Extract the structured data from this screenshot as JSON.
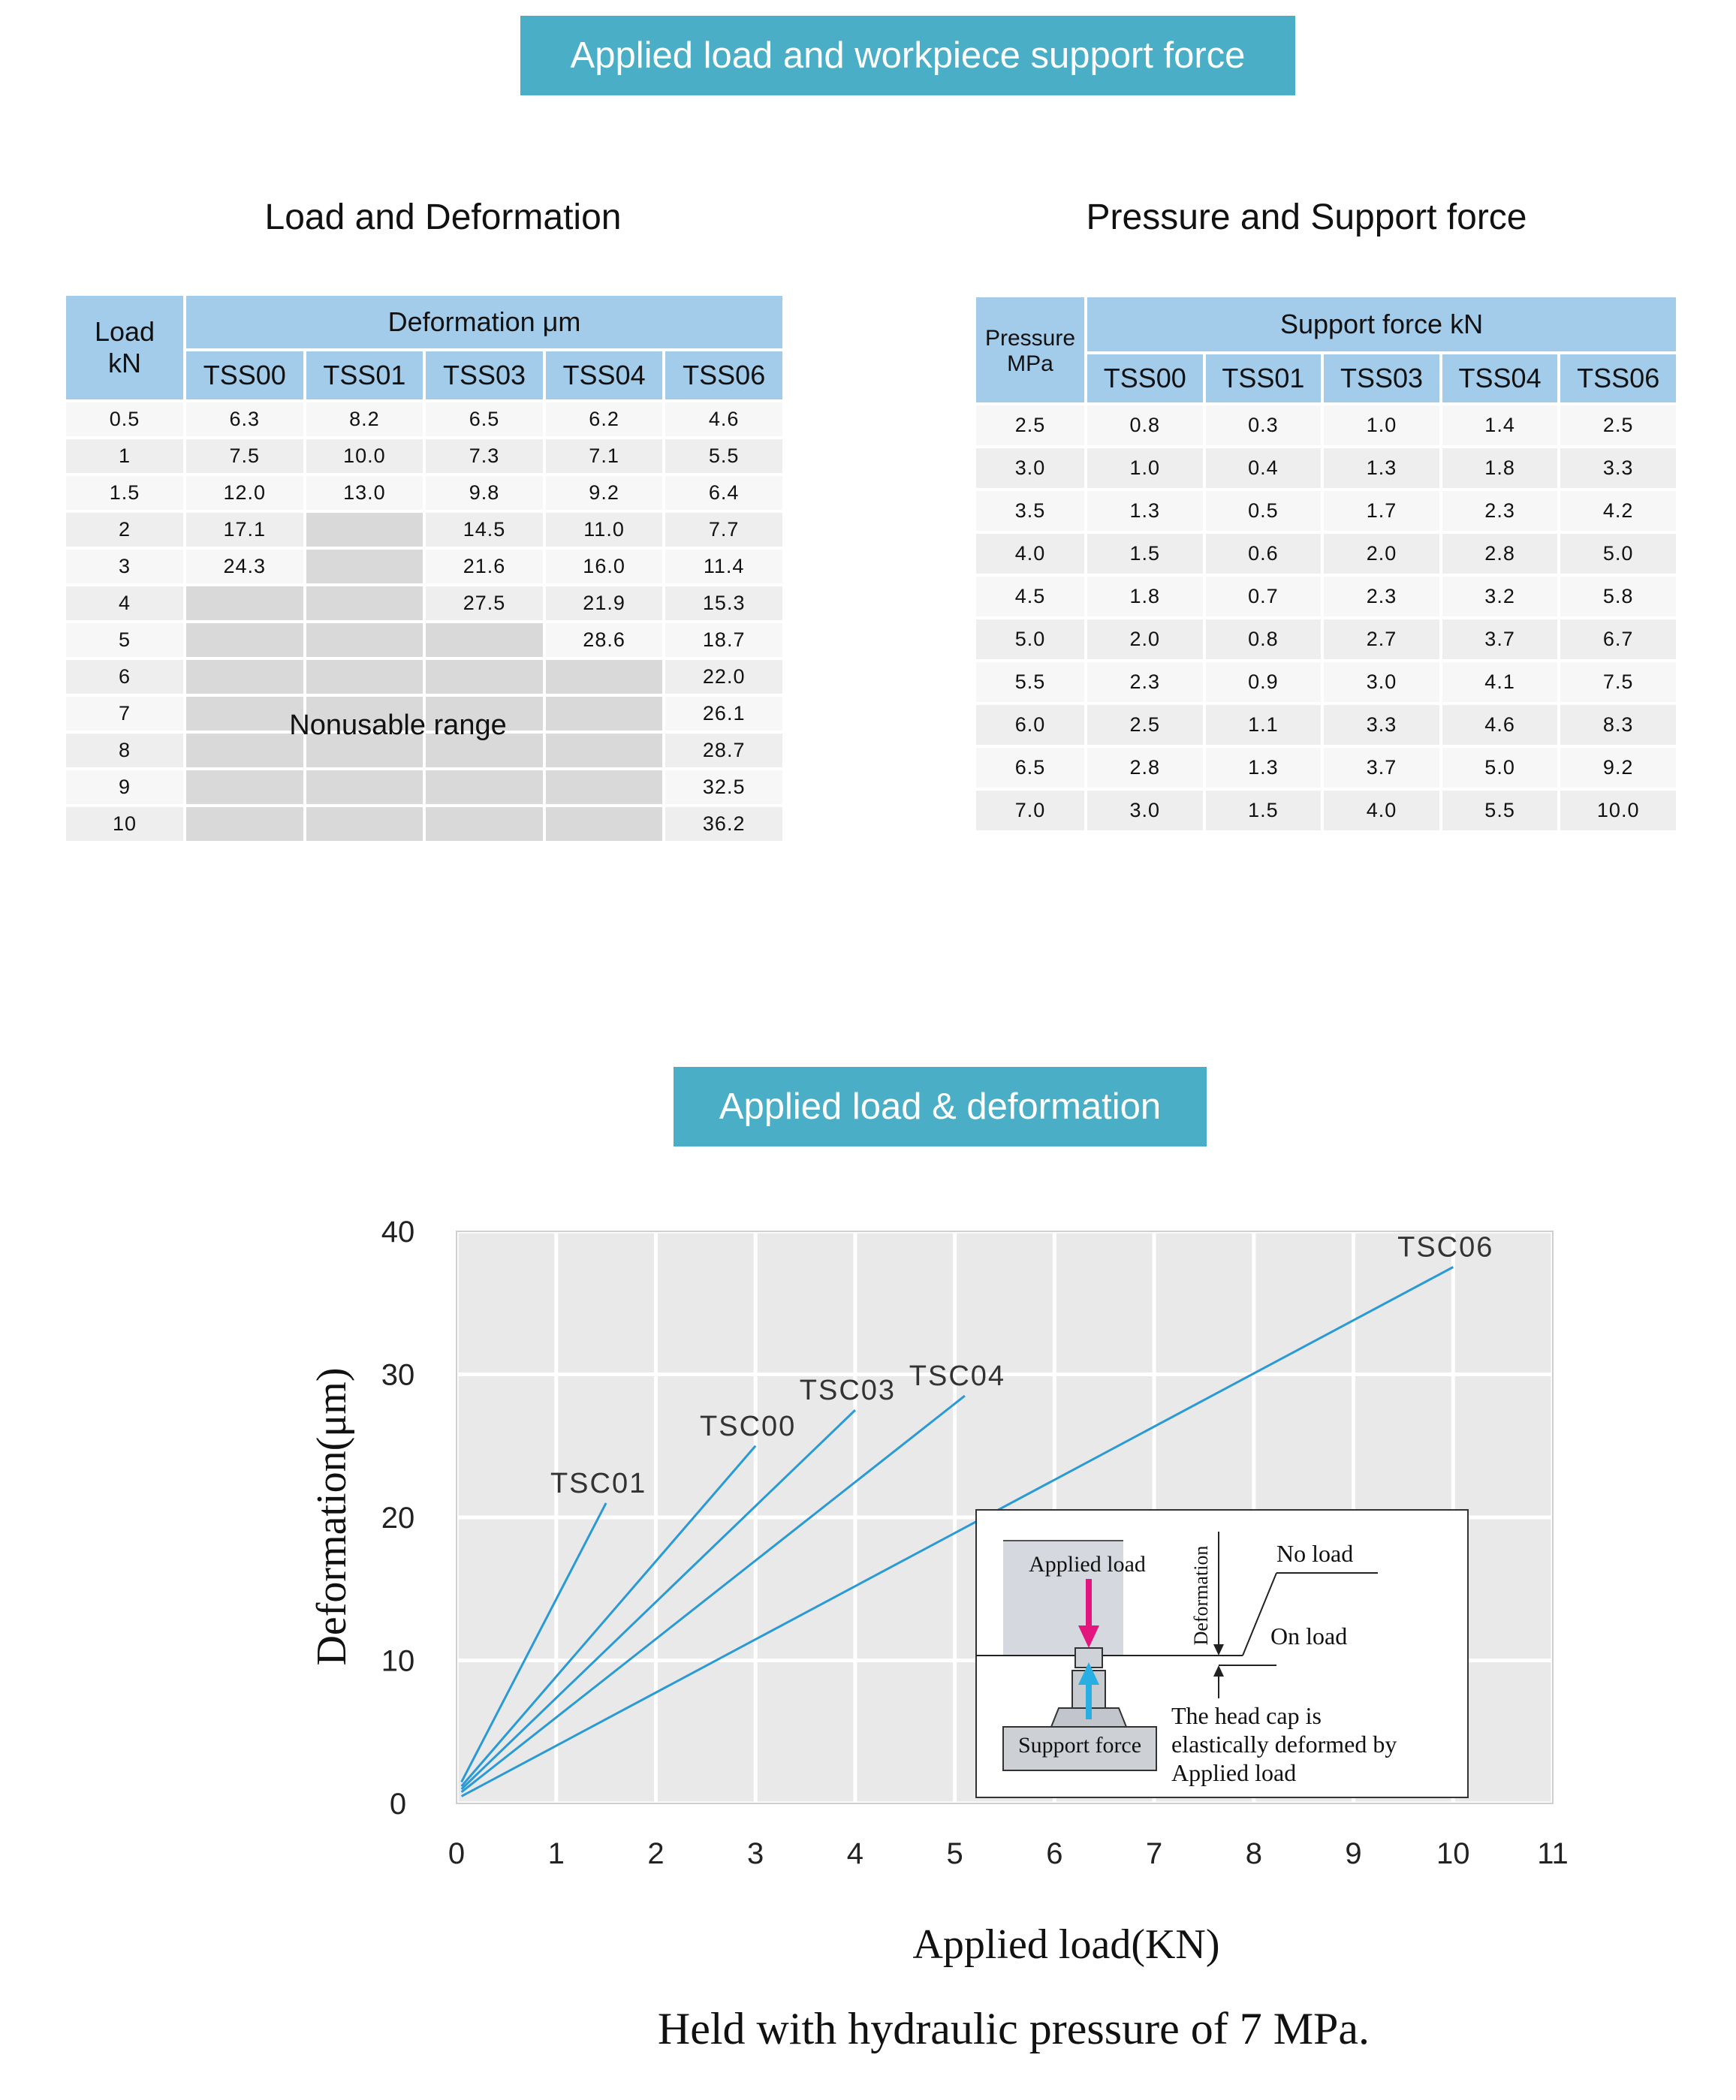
{
  "banner_top": "Applied load and workpiece support force",
  "banner_chart": "Applied load & deformation",
  "load_table": {
    "title": "Load and Deformation",
    "corner_line1": "Load",
    "corner_line2": "kN",
    "group_header": "Deformation μm",
    "columns": [
      "TSS00",
      "TSS01",
      "TSS03",
      "TSS04",
      "TSS06"
    ],
    "rows": [
      {
        "load": "0.5",
        "values": [
          "6.3",
          "8.2",
          "6.5",
          "6.2",
          "4.6"
        ]
      },
      {
        "load": "1",
        "values": [
          "7.5",
          "10.0",
          "7.3",
          "7.1",
          "5.5"
        ]
      },
      {
        "load": "1.5",
        "values": [
          "12.0",
          "13.0",
          "9.8",
          "9.2",
          "6.4"
        ]
      },
      {
        "load": "2",
        "values": [
          "17.1",
          "",
          "14.5",
          "11.0",
          "7.7"
        ]
      },
      {
        "load": "3",
        "values": [
          "24.3",
          "",
          "21.6",
          "16.0",
          "11.4"
        ]
      },
      {
        "load": "4",
        "values": [
          "",
          "",
          "27.5",
          "21.9",
          "15.3"
        ]
      },
      {
        "load": "5",
        "values": [
          "",
          "",
          "",
          "28.6",
          "18.7"
        ]
      },
      {
        "load": "6",
        "values": [
          "",
          "",
          "",
          "",
          "22.0"
        ]
      },
      {
        "load": "7",
        "values": [
          "",
          "",
          "",
          "",
          "26.1"
        ]
      },
      {
        "load": "8",
        "values": [
          "",
          "",
          "",
          "",
          "28.7"
        ]
      },
      {
        "load": "9",
        "values": [
          "",
          "",
          "",
          "",
          "32.5"
        ]
      },
      {
        "load": "10",
        "values": [
          "",
          "",
          "",
          "",
          "36.2"
        ]
      }
    ],
    "nonusable_label": "Nonusable range"
  },
  "pressure_table": {
    "title": "Pressure and Support force",
    "corner_line1": "Pressure",
    "corner_line2": "MPa",
    "group_header": "Support force kN",
    "columns": [
      "TSS00",
      "TSS01",
      "TSS03",
      "TSS04",
      "TSS06"
    ],
    "rows": [
      {
        "pressure": "2.5",
        "values": [
          "0.8",
          "0.3",
          "1.0",
          "1.4",
          "2.5"
        ]
      },
      {
        "pressure": "3.0",
        "values": [
          "1.0",
          "0.4",
          "1.3",
          "1.8",
          "3.3"
        ]
      },
      {
        "pressure": "3.5",
        "values": [
          "1.3",
          "0.5",
          "1.7",
          "2.3",
          "4.2"
        ]
      },
      {
        "pressure": "4.0",
        "values": [
          "1.5",
          "0.6",
          "2.0",
          "2.8",
          "5.0"
        ]
      },
      {
        "pressure": "4.5",
        "values": [
          "1.8",
          "0.7",
          "2.3",
          "3.2",
          "5.8"
        ]
      },
      {
        "pressure": "5.0",
        "values": [
          "2.0",
          "0.8",
          "2.7",
          "3.7",
          "6.7"
        ]
      },
      {
        "pressure": "5.5",
        "values": [
          "2.3",
          "0.9",
          "3.0",
          "4.1",
          "7.5"
        ]
      },
      {
        "pressure": "6.0",
        "values": [
          "2.5",
          "1.1",
          "3.3",
          "4.6",
          "8.3"
        ]
      },
      {
        "pressure": "6.5",
        "values": [
          "2.8",
          "1.3",
          "3.7",
          "5.0",
          "9.2"
        ]
      },
      {
        "pressure": "7.0",
        "values": [
          "3.0",
          "1.5",
          "4.0",
          "5.5",
          "10.0"
        ]
      }
    ]
  },
  "chart_data": {
    "type": "line",
    "xlabel": "Applied load(KN)",
    "ylabel": "Deformation(μm)",
    "xlim": [
      0,
      11
    ],
    "ylim": [
      0,
      40
    ],
    "xticks": [
      "0",
      "1",
      "2",
      "3",
      "4",
      "5",
      "6",
      "7",
      "8",
      "9",
      "10",
      "11"
    ],
    "yticks": [
      "0",
      "10",
      "20",
      "30",
      "40"
    ],
    "grid": true,
    "line_color": "#2a9ad6",
    "series": [
      {
        "name": "TSC01",
        "x": [
          0.05,
          1.5
        ],
        "y": [
          1.5,
          21.0
        ]
      },
      {
        "name": "TSC00",
        "x": [
          0.05,
          3.0
        ],
        "y": [
          1.2,
          25.0
        ]
      },
      {
        "name": "TSC03",
        "x": [
          0.05,
          4.0
        ],
        "y": [
          1.0,
          27.5
        ]
      },
      {
        "name": "TSC04",
        "x": [
          0.05,
          5.1
        ],
        "y": [
          0.8,
          28.5
        ]
      },
      {
        "name": "TSC06",
        "x": [
          0.05,
          10.0
        ],
        "y": [
          0.5,
          37.5
        ]
      }
    ],
    "inset": {
      "applied_load": "Applied load",
      "support_force": "Support force",
      "deformation": "Deformation",
      "no_load": "No load",
      "on_load": "On load",
      "note_line1": "The head cap is",
      "note_line2": "elastically deformed by",
      "note_line3": "Applied load",
      "load_arrow_color": "#e5157f",
      "support_arrow_color": "#27aee3"
    }
  },
  "footnote": "Held with hydraulic pressure of 7 MPa."
}
